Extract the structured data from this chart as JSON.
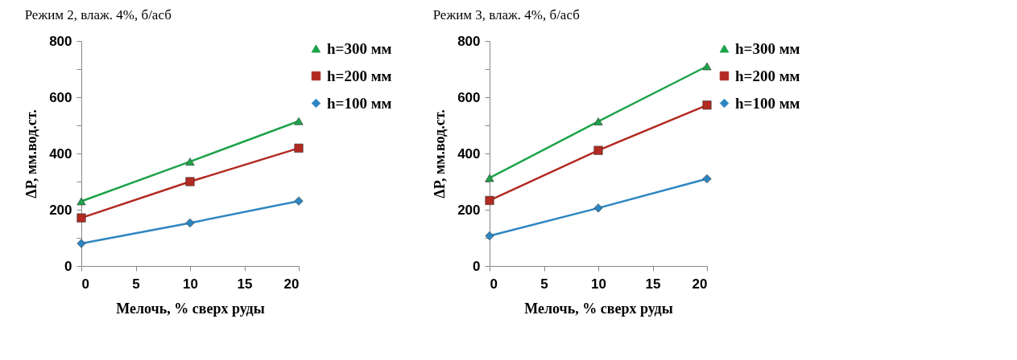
{
  "chart_data": [
    {
      "type": "line",
      "title": "Режим 2,  влаж. 4%,  б/асб",
      "xlabel": "Мелочь, % сверх руды",
      "ylabel": "ΔP, мм.вод.ст.",
      "x": [
        0,
        10,
        20
      ],
      "xlim": [
        0,
        20
      ],
      "xticks": [
        0,
        5,
        10,
        15,
        20
      ],
      "ylim": [
        0,
        800
      ],
      "yticks": [
        0,
        {
          "value": 100,
          "label": null
        },
        200,
        {
          "value": 300,
          "label": null
        },
        400,
        {
          "value": 500,
          "label": null
        },
        600,
        {
          "value": 700,
          "label": null
        },
        800
      ],
      "grid": false,
      "legend": "right",
      "series": [
        {
          "name": "h=300 мм",
          "color": "#1fa34a",
          "marker": "triangle",
          "values": [
            230,
            371,
            515
          ]
        },
        {
          "name": "h=200 мм",
          "color": "#b22a22",
          "marker": "square",
          "values": [
            171,
            300,
            419
          ]
        },
        {
          "name": "h=100 мм",
          "color": "#2e86c1",
          "marker": "diamond",
          "values": [
            80,
            153,
            231
          ]
        }
      ]
    },
    {
      "type": "line",
      "title": "Режим 3,  влаж. 4%,   б/асб",
      "xlabel": "Мелочь, % сверх руды",
      "ylabel": "ΔP, мм.вод.ст.",
      "x": [
        0,
        10,
        20
      ],
      "xlim": [
        0,
        20
      ],
      "xticks": [
        0,
        5,
        10,
        15,
        20
      ],
      "ylim": [
        0,
        800
      ],
      "yticks": [
        0,
        {
          "value": 100,
          "label": null
        },
        200,
        {
          "value": 300,
          "label": null
        },
        400,
        {
          "value": 500,
          "label": null
        },
        600,
        {
          "value": 700,
          "label": null
        },
        800
      ],
      "grid": false,
      "legend": "right",
      "series": [
        {
          "name": "h=300 мм",
          "color": "#1fa34a",
          "marker": "triangle",
          "values": [
            313,
            514,
            710
          ]
        },
        {
          "name": "h=200 мм",
          "color": "#b22a22",
          "marker": "square",
          "values": [
            233,
            411,
            572
          ]
        },
        {
          "name": "h=100 мм",
          "color": "#2e86c1",
          "marker": "diamond",
          "values": [
            107,
            206,
            310
          ]
        }
      ]
    }
  ]
}
